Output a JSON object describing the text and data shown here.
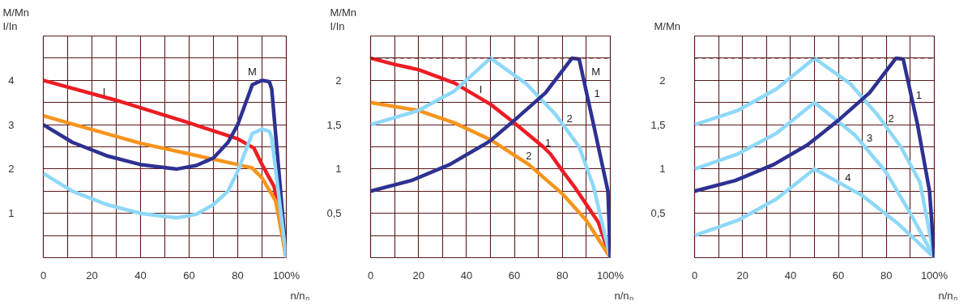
{
  "chart_data": [
    {
      "type": "line",
      "ylabel": "M/Mn\nI/In",
      "xlabel": "n/nₙ",
      "grid": true,
      "line_style": "solid",
      "marker": "none",
      "xlim": [
        0,
        100
      ],
      "ylim": [
        0,
        5
      ],
      "xticks": [
        0,
        {
          "value": 10,
          "label": null
        },
        20,
        {
          "value": 30,
          "label": null
        },
        40,
        {
          "value": 50,
          "label": null
        },
        60,
        {
          "value": 70,
          "label": null
        },
        80,
        {
          "value": 90,
          "label": null
        },
        {
          "value": 100,
          "label": "100%"
        }
      ],
      "yticks": [
        {
          "value": 0.5,
          "label": null
        },
        1,
        {
          "value": 1.5,
          "label": null
        },
        2,
        {
          "value": 2.5,
          "label": null
        },
        3,
        {
          "value": 3.5,
          "label": null
        },
        4,
        {
          "value": 4.5,
          "label": null
        }
      ],
      "series": [
        {
          "color": "#ed1c24",
          "x": [
            0,
            30,
            60,
            80,
            86.7,
            90,
            95,
            100
          ],
          "values": [
            4,
            3.55,
            3.04,
            2.68,
            2.47,
            2.1,
            1.6,
            0
          ]
        },
        {
          "color": "#f7941d",
          "x": [
            0,
            40,
            60,
            80,
            86,
            90,
            95.6,
            100
          ],
          "values": [
            3.2,
            2.58,
            2.34,
            2.1,
            2.02,
            1.8,
            1.28,
            0
          ]
        },
        {
          "color": "#2e3192",
          "x": [
            0,
            12,
            26,
            40,
            55,
            63,
            70,
            76,
            80,
            86,
            90,
            93,
            94,
            100
          ],
          "values": [
            3,
            2.6,
            2.3,
            2.1,
            2.0,
            2.08,
            2.25,
            2.6,
            3.0,
            3.9,
            4.0,
            3.97,
            3.8,
            0
          ]
        },
        {
          "color": "#8ed8f8",
          "x": [
            0,
            12,
            26,
            40,
            55,
            63,
            70,
            76,
            80,
            86,
            90,
            93,
            94,
            100
          ],
          "values": [
            1.9,
            1.5,
            1.2,
            1.0,
            0.9,
            0.98,
            1.2,
            1.5,
            1.95,
            2.8,
            2.9,
            2.85,
            2.7,
            0
          ]
        }
      ],
      "annotations": [
        "I",
        "M"
      ]
    },
    {
      "type": "line",
      "ylabel": "M/Mn\nI/In",
      "xlabel": "n/nₙ",
      "grid": true,
      "line_style": "solid",
      "marker": "none",
      "xlim": [
        0,
        100
      ],
      "ylim": [
        0,
        2.5
      ],
      "xticks": [
        0,
        {
          "value": 10,
          "label": null
        },
        20,
        {
          "value": 30,
          "label": null
        },
        40,
        {
          "value": 50,
          "label": null
        },
        60,
        {
          "value": 70,
          "label": null
        },
        80,
        {
          "value": 90,
          "label": null
        },
        {
          "value": 100,
          "label": "100%"
        }
      ],
      "yticks": [
        {
          "value": 0.25,
          "label": null
        },
        {
          "value": 0.5,
          "label": "0,5"
        },
        {
          "value": 0.75,
          "label": null
        },
        1,
        {
          "value": 1.25,
          "label": null
        },
        {
          "value": 1.5,
          "label": "1,5"
        },
        {
          "value": 1.75,
          "label": null
        },
        2,
        {
          "value": 2.25,
          "label": null
        }
      ],
      "ref_lines": [
        {
          "axis": "y",
          "value": 2.25,
          "label": null,
          "color": "#5a1a1a",
          "line_style": "dashed"
        }
      ],
      "series": [
        {
          "color": "#ed1c24",
          "x": [
            0,
            10,
            20,
            35,
            50,
            60,
            72,
            75,
            80,
            85,
            95,
            100
          ],
          "values": [
            2.25,
            2.18,
            2.12,
            1.97,
            1.73,
            1.52,
            1.25,
            1.17,
            0.98,
            0.8,
            0.4,
            0
          ]
        },
        {
          "color": "#f7941d",
          "x": [
            0,
            20,
            35,
            50,
            66,
            80,
            90,
            100
          ],
          "values": [
            1.75,
            1.66,
            1.52,
            1.33,
            1.05,
            0.72,
            0.42,
            0
          ]
        },
        {
          "color": "#8ed8f8",
          "x": [
            0,
            20,
            35,
            50,
            65,
            77,
            87,
            93,
            100
          ],
          "values": [
            1.5,
            1.66,
            1.88,
            2.25,
            1.96,
            1.62,
            1.25,
            0.8,
            0
          ]
        },
        {
          "color": "#2e3192",
          "x": [
            0,
            17,
            33,
            47,
            50,
            60,
            73,
            84,
            87,
            93,
            99,
            100
          ],
          "values": [
            0.75,
            0.87,
            1.05,
            1.27,
            1.32,
            1.55,
            1.86,
            2.25,
            2.24,
            1.5,
            0.75,
            0
          ]
        }
      ],
      "annotations": [
        "I",
        "1",
        "2",
        "M",
        "1",
        "2"
      ]
    },
    {
      "type": "line",
      "ylabel": "M/Mn",
      "xlabel": "n/nₙ",
      "grid": true,
      "line_style": "solid",
      "marker": "none",
      "xlim": [
        0,
        100
      ],
      "ylim": [
        0,
        2.5
      ],
      "xticks": [
        0,
        {
          "value": 10,
          "label": null
        },
        20,
        {
          "value": 30,
          "label": null
        },
        40,
        {
          "value": 50,
          "label": null
        },
        60,
        {
          "value": 70,
          "label": null
        },
        80,
        {
          "value": 90,
          "label": null
        },
        {
          "value": 100,
          "label": "100%"
        }
      ],
      "yticks": [
        {
          "value": 0.25,
          "label": null
        },
        {
          "value": 0.5,
          "label": "0,5"
        },
        {
          "value": 0.75,
          "label": null
        },
        1,
        {
          "value": 1.25,
          "label": null
        },
        {
          "value": 1.5,
          "label": "1,5"
        },
        {
          "value": 1.75,
          "label": null
        },
        2,
        {
          "value": 2.25,
          "label": null
        }
      ],
      "ref_lines": [
        {
          "axis": "y",
          "value": 2.25,
          "label": null,
          "color": "#5a1a1a",
          "line_style": "dashed"
        }
      ],
      "series": [
        {
          "color": "#8ed8f8",
          "x": [
            0,
            18,
            34,
            50,
            65,
            76,
            86,
            94,
            100
          ],
          "values": [
            1.5,
            1.66,
            1.9,
            2.25,
            1.96,
            1.62,
            1.25,
            0.85,
            0
          ]
        },
        {
          "color": "#8ed8f8",
          "x": [
            0,
            18,
            34,
            50,
            67,
            80,
            90,
            100
          ],
          "values": [
            1.0,
            1.17,
            1.4,
            1.75,
            1.38,
            0.96,
            0.5,
            0
          ]
        },
        {
          "color": "#8ed8f8",
          "x": [
            0,
            18,
            34,
            50,
            70,
            85,
            100
          ],
          "values": [
            0.25,
            0.42,
            0.66,
            1.0,
            0.7,
            0.38,
            0
          ]
        },
        {
          "color": "#2e3192",
          "x": [
            0,
            17,
            33,
            47,
            60,
            73,
            84,
            87,
            93,
            98,
            100
          ],
          "values": [
            0.75,
            0.87,
            1.05,
            1.27,
            1.55,
            1.86,
            2.25,
            2.24,
            1.5,
            0.75,
            0
          ]
        }
      ],
      "annotations": [
        "1",
        "2",
        "3",
        "4"
      ]
    }
  ]
}
